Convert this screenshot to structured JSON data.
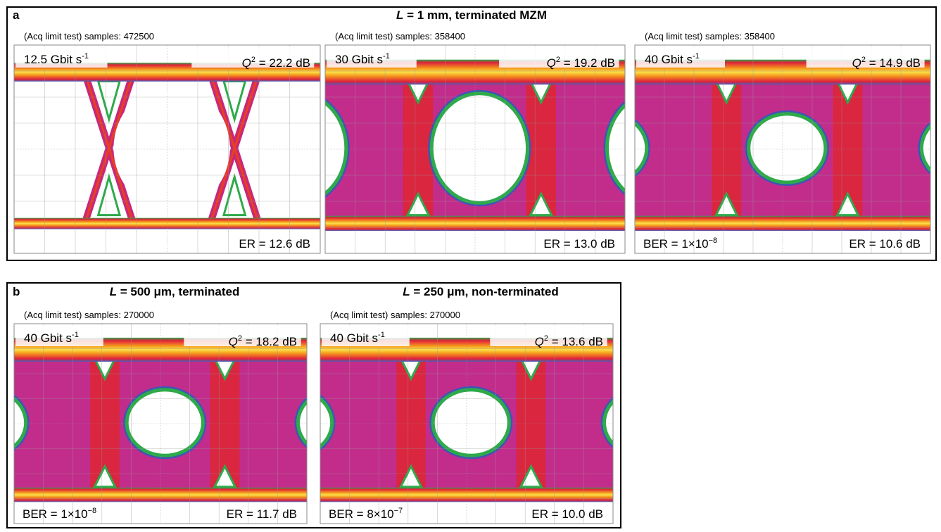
{
  "panels": [
    {
      "label": "a",
      "title": {
        "italic": "L",
        "rest": " = 1 mm, terminated MZM"
      },
      "scopes": [
        {
          "header": "(Acq limit test) samples: 472500",
          "rate": {
            "text": "12.5 Gbit s",
            "sup": "-1"
          },
          "q": {
            "symbol": "Q",
            "sup": "2",
            "rest": " = 22.2 dB"
          },
          "er": "ER = 12.6 dB"
        },
        {
          "header": "(Acq limit test) samples: 358400",
          "rate": {
            "text": "30 Gbit s",
            "sup": "-1"
          },
          "q": {
            "symbol": "Q",
            "sup": "2",
            "rest": " = 19.2 dB"
          },
          "er": "ER = 13.0 dB"
        },
        {
          "header": "(Acq limit test) samples: 358400",
          "rate": {
            "text": "40 Gbit s",
            "sup": "-1"
          },
          "q": {
            "symbol": "Q",
            "sup": "2",
            "rest": " = 14.9 dB"
          },
          "ber": {
            "text": "BER = 1×10",
            "sup": "−8"
          },
          "er": "ER = 10.6 dB"
        }
      ]
    },
    {
      "label": "b",
      "scopes": [
        {
          "title": {
            "italic": "L",
            "rest": " = 500 μm, terminated"
          },
          "header": "(Acq limit test) samples: 270000",
          "rate": {
            "text": "40 Gbit s",
            "sup": "-1"
          },
          "q": {
            "symbol": "Q",
            "sup": "2",
            "rest": " = 18.2 dB"
          },
          "ber": {
            "text": "BER = 1×10",
            "sup": "−8"
          },
          "er": "ER = 11.7 dB"
        },
        {
          "title": {
            "italic": "L",
            "rest": " = 250 μm, non-terminated"
          },
          "header": "(Acq limit test) samples: 270000",
          "rate": {
            "text": "40 Gbit s",
            "sup": "-1"
          },
          "q": {
            "symbol": "Q",
            "sup": "2",
            "rest": " = 13.6 dB"
          },
          "ber": {
            "text": "BER = 8×10",
            "sup": "−7"
          },
          "er": "ER = 10.0 dB"
        }
      ]
    }
  ]
}
